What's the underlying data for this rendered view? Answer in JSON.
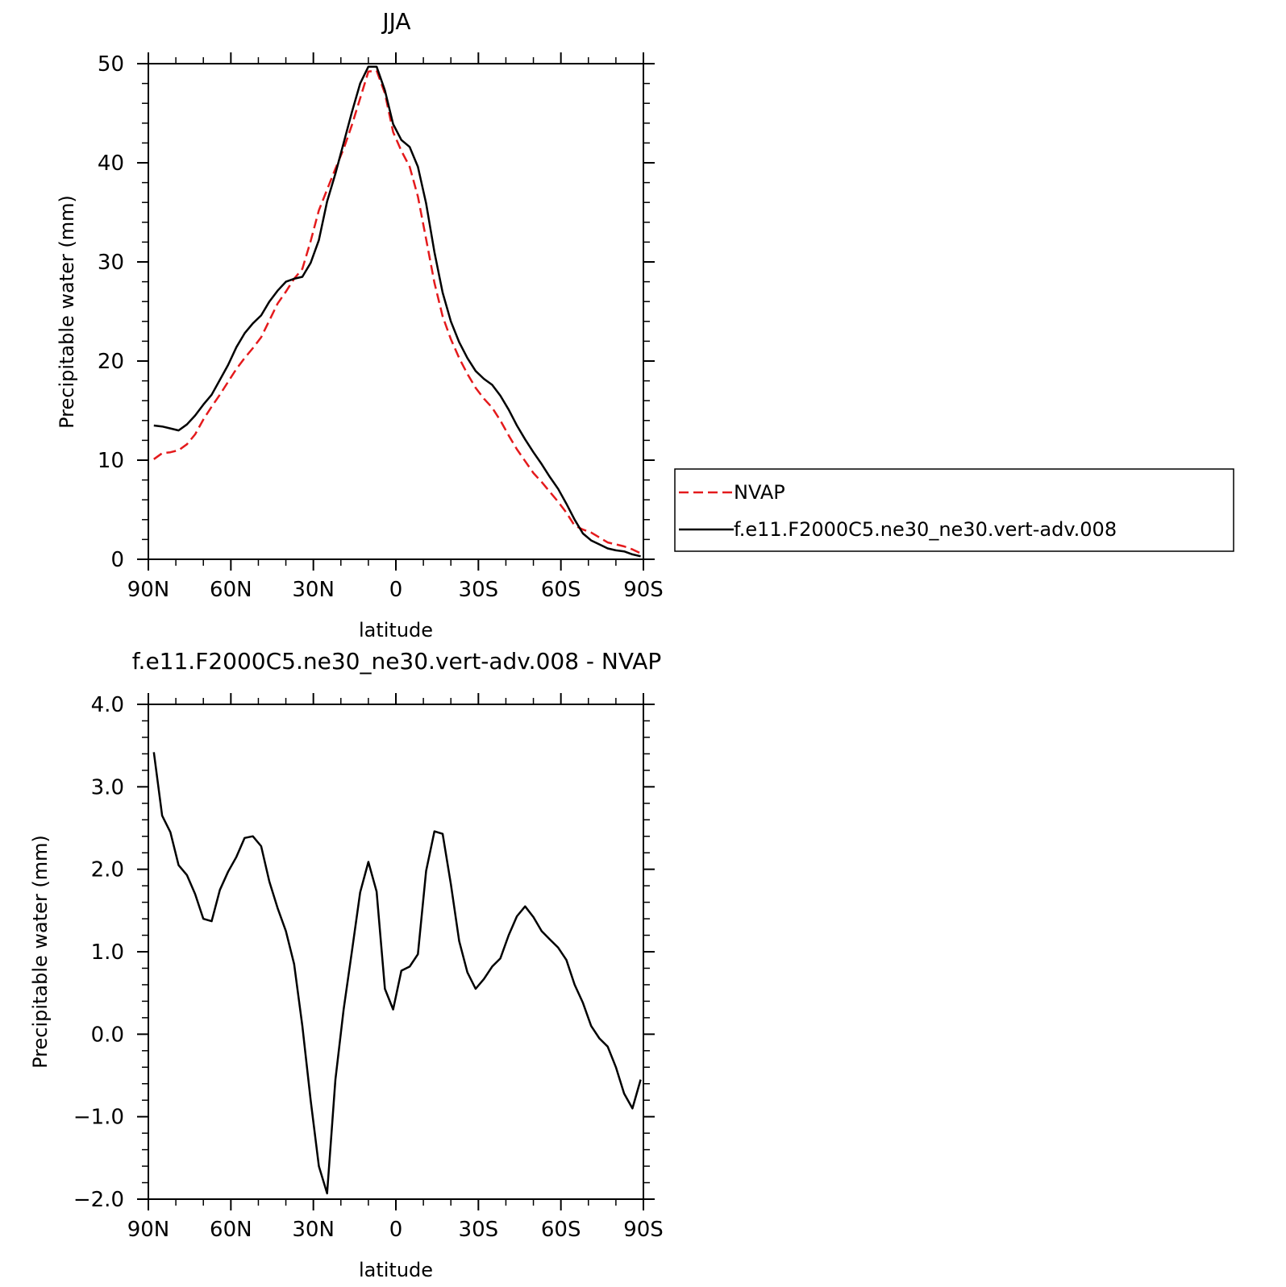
{
  "chart_data": [
    {
      "type": "line",
      "title": "JJA",
      "xlabel": "latitude",
      "ylabel": "Precipitable water (mm)",
      "xlim": [
        90,
        -90
      ],
      "ylim": [
        0,
        50
      ],
      "grid": false,
      "x_ticks": [
        {
          "value": 90,
          "label": "90N"
        },
        {
          "value": 60,
          "label": "60N"
        },
        {
          "value": 30,
          "label": "30N"
        },
        {
          "value": 0,
          "label": "0"
        },
        {
          "value": -30,
          "label": "30S"
        },
        {
          "value": -60,
          "label": "60S"
        },
        {
          "value": -90,
          "label": "90S"
        }
      ],
      "y_ticks": [
        {
          "value": 0,
          "label": "0"
        },
        {
          "value": 10,
          "label": "10"
        },
        {
          "value": 20,
          "label": "20"
        },
        {
          "value": 30,
          "label": "30"
        },
        {
          "value": 40,
          "label": "40"
        },
        {
          "value": 50,
          "label": "50"
        }
      ],
      "legend_position": "right",
      "series": [
        {
          "name": "NVAP",
          "color": "#e41a1c",
          "dash": true,
          "x": [
            88,
            85,
            82,
            79,
            76,
            73,
            70,
            67,
            64,
            61,
            58,
            55,
            52,
            49,
            46,
            43,
            40,
            37,
            34,
            31,
            28,
            25,
            22,
            19,
            16,
            13,
            10,
            7,
            4,
            1,
            -2,
            -5,
            -8,
            -11,
            -14,
            -17,
            -20,
            -23,
            -26,
            -29,
            -32,
            -35,
            -38,
            -41,
            -44,
            -47,
            -50,
            -53,
            -56,
            -59,
            -62,
            -65,
            -68,
            -71,
            -74,
            -77,
            -80,
            -83,
            -86,
            -89
          ],
          "y": [
            10.1,
            10.7,
            10.8,
            11.0,
            11.6,
            12.6,
            14.1,
            15.4,
            16.6,
            17.9,
            19.2,
            20.3,
            21.3,
            22.4,
            24.1,
            25.8,
            27.0,
            28.3,
            29.3,
            32.1,
            35.2,
            37.3,
            39.4,
            41.4,
            43.8,
            46.5,
            49.2,
            49.3,
            47.0,
            43.1,
            41.2,
            39.6,
            36.6,
            32.3,
            27.9,
            24.5,
            22.2,
            20.3,
            18.7,
            17.3,
            16.2,
            15.3,
            14.0,
            12.5,
            11.1,
            9.9,
            8.7,
            7.8,
            6.8,
            5.8,
            4.7,
            3.4,
            3.0,
            2.7,
            2.2,
            1.7,
            1.5,
            1.3,
            1.0,
            0.6
          ]
        },
        {
          "name": "f.e11.F2000C5.ne30_ne30.vert-adv.008",
          "color": "#000000",
          "dash": false,
          "x": [
            88,
            85,
            82,
            79,
            76,
            73,
            70,
            67,
            64,
            61,
            58,
            55,
            52,
            49,
            46,
            43,
            40,
            37,
            34,
            31,
            28,
            25,
            22,
            19,
            16,
            13,
            10,
            7,
            4,
            1,
            -2,
            -5,
            -8,
            -11,
            -14,
            -17,
            -20,
            -23,
            -26,
            -29,
            -32,
            -35,
            -38,
            -41,
            -44,
            -47,
            -50,
            -53,
            -56,
            -59,
            -62,
            -65,
            -68,
            -71,
            -74,
            -77,
            -80,
            -83,
            -86,
            -89
          ],
          "y": [
            13.5,
            13.4,
            13.2,
            13.0,
            13.6,
            14.5,
            15.6,
            16.6,
            18.1,
            19.6,
            21.4,
            22.8,
            23.8,
            24.6,
            26.0,
            27.1,
            28.0,
            28.3,
            28.5,
            29.9,
            32.2,
            36.1,
            38.9,
            42.0,
            45.1,
            48.0,
            49.7,
            49.7,
            47.3,
            43.9,
            42.3,
            41.6,
            39.6,
            35.9,
            31.0,
            26.9,
            24.0,
            21.9,
            20.3,
            19.0,
            18.2,
            17.6,
            16.5,
            15.1,
            13.5,
            12.1,
            10.8,
            9.6,
            8.3,
            7.1,
            5.6,
            4.0,
            2.6,
            1.9,
            1.5,
            1.1,
            0.9,
            0.8,
            0.5,
            0.3
          ]
        }
      ]
    },
    {
      "type": "line",
      "title": "f.e11.F2000C5.ne30_ne30.vert-adv.008 - NVAP",
      "xlabel": "latitude",
      "ylabel": "Precipitable water (mm)",
      "xlim": [
        90,
        -90
      ],
      "ylim": [
        -2.0,
        4.0
      ],
      "grid": false,
      "x_ticks": [
        {
          "value": 90,
          "label": "90N"
        },
        {
          "value": 60,
          "label": "60N"
        },
        {
          "value": 30,
          "label": "30N"
        },
        {
          "value": 0,
          "label": "0"
        },
        {
          "value": -30,
          "label": "30S"
        },
        {
          "value": -60,
          "label": "60S"
        },
        {
          "value": -90,
          "label": "90S"
        }
      ],
      "y_ticks": [
        {
          "value": -2.0,
          "label": "−2.0"
        },
        {
          "value": -1.0,
          "label": "−1.0"
        },
        {
          "value": 0.0,
          "label": "0.0"
        },
        {
          "value": 1.0,
          "label": "1.0"
        },
        {
          "value": 2.0,
          "label": "2.0"
        },
        {
          "value": 3.0,
          "label": "3.0"
        },
        {
          "value": 4.0,
          "label": "4.0"
        }
      ],
      "series": [
        {
          "color": "#000000",
          "dash": false,
          "x": [
            88,
            85,
            82,
            79,
            76,
            73,
            70,
            67,
            64,
            61,
            58,
            55,
            52,
            49,
            46,
            43,
            40,
            37,
            34,
            31,
            28,
            25,
            22,
            19,
            16,
            13,
            10,
            7,
            4,
            1,
            -2,
            -5,
            -8,
            -11,
            -14,
            -17,
            -20,
            -23,
            -26,
            -29,
            -32,
            -35,
            -38,
            -41,
            -44,
            -47,
            -50,
            -53,
            -56,
            -59,
            -62,
            -65,
            -68,
            -71,
            -74,
            -77,
            -80,
            -83,
            -86,
            -89
          ],
          "y": [
            3.42,
            2.65,
            2.45,
            2.05,
            1.93,
            1.7,
            1.4,
            1.37,
            1.75,
            1.97,
            2.15,
            2.38,
            2.4,
            2.28,
            1.85,
            1.53,
            1.25,
            0.85,
            0.1,
            -0.8,
            -1.6,
            -1.93,
            -0.55,
            0.3,
            1.0,
            1.72,
            2.09,
            1.73,
            0.55,
            0.3,
            0.77,
            0.82,
            0.97,
            1.98,
            2.46,
            2.43,
            1.82,
            1.13,
            0.75,
            0.55,
            0.67,
            0.82,
            0.92,
            1.2,
            1.43,
            1.55,
            1.42,
            1.25,
            1.15,
            1.05,
            0.9,
            0.6,
            0.38,
            0.1,
            -0.05,
            -0.15,
            -0.4,
            -0.72,
            -0.9,
            -0.55
          ]
        }
      ]
    }
  ]
}
